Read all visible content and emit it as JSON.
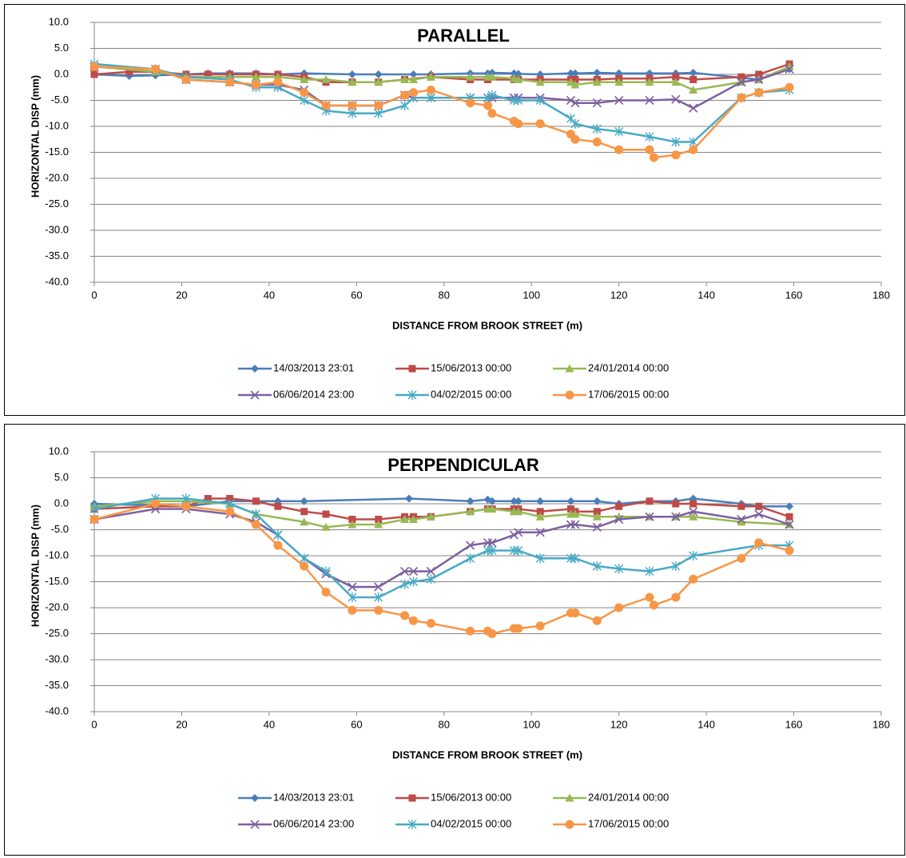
{
  "chart_data": [
    {
      "type": "line",
      "title": "PARALLEL",
      "x_label": "DISTANCE FROM BROOK STREET (m)",
      "y_label": "HORIZONTAL DISP (mm)",
      "xlim": [
        0,
        180
      ],
      "xticks": [
        0,
        20,
        40,
        60,
        80,
        100,
        120,
        140,
        160,
        180
      ],
      "ylim": [
        -40,
        10
      ],
      "yticks": [
        {
          "value": 10,
          "label": "10.0"
        },
        {
          "value": 5,
          "label": "5.0"
        },
        {
          "value": 0,
          "label": "0.0"
        },
        {
          "value": -5,
          "label": "-5.0"
        },
        {
          "value": -10,
          "label": "-10.0"
        },
        {
          "value": -15,
          "label": "-15.0"
        },
        {
          "value": -20,
          "label": "-20.0"
        },
        {
          "value": -25,
          "label": "-25.0"
        },
        {
          "value": -30,
          "label": "-30.0"
        },
        {
          "value": -35,
          "label": "-35.0"
        },
        {
          "value": -40,
          "label": "-40.0"
        }
      ],
      "grid": true,
      "legend": "bottom",
      "series": [
        {
          "name": "14/03/2013 23:01",
          "color": "#4a7ebb",
          "marker": "diamond",
          "x": [
            0,
            8,
            14,
            21,
            26,
            31,
            37,
            42,
            48,
            59,
            65,
            73,
            77,
            86,
            90,
            91,
            96,
            97,
            102,
            109,
            110,
            115,
            120,
            127,
            133,
            137,
            152,
            159
          ],
          "values": [
            0,
            -0.3,
            -0.2,
            0,
            0.2,
            0.2,
            0.2,
            0,
            0.2,
            0,
            0,
            0,
            0,
            0.2,
            0.2,
            0.3,
            0.2,
            0.1,
            0,
            0.2,
            0.2,
            0.3,
            0.2,
            0.2,
            0.2,
            0.3,
            -1,
            1
          ]
        },
        {
          "name": "15/06/2013 00:00",
          "color": "#be4b48",
          "marker": "square",
          "x": [
            0,
            8,
            14,
            21,
            26,
            31,
            37,
            42,
            48,
            53,
            59,
            65,
            71,
            77,
            86,
            90,
            96,
            97,
            102,
            109,
            110,
            115,
            120,
            127,
            133,
            137,
            148,
            152,
            159
          ],
          "values": [
            0,
            0.5,
            0.5,
            0,
            0,
            0,
            0,
            0,
            -0.5,
            -1.5,
            -1.5,
            -1.5,
            -1,
            -0.5,
            -1,
            -1,
            -1,
            -1,
            -1,
            -1,
            -1,
            -1,
            -0.8,
            -0.8,
            -0.5,
            -1,
            -0.5,
            0,
            2
          ]
        },
        {
          "name": "24/01/2014 00:00",
          "color": "#98b954",
          "marker": "triangle",
          "x": [
            0,
            14,
            21,
            31,
            37,
            42,
            48,
            53,
            59,
            65,
            71,
            73,
            77,
            86,
            90,
            91,
            96,
            97,
            102,
            109,
            110,
            115,
            120,
            127,
            133,
            137,
            148,
            152,
            159
          ],
          "values": [
            1.5,
            0.5,
            -0.5,
            -0.5,
            -0.5,
            -0.5,
            -1,
            -1,
            -1.5,
            -1.5,
            -1,
            -1,
            -0.5,
            -0.5,
            -0.5,
            -0.5,
            -0.8,
            -1,
            -1.5,
            -1.5,
            -2,
            -1.5,
            -1.5,
            -1.5,
            -1.5,
            -3,
            -1.5,
            -1,
            1.5
          ]
        },
        {
          "name": "06/06/2014 23:00",
          "color": "#7d60a0",
          "marker": "x",
          "x": [
            0,
            14,
            21,
            31,
            37,
            42,
            48,
            53,
            59,
            65,
            71,
            73,
            77,
            86,
            90,
            91,
            96,
            97,
            102,
            109,
            110,
            115,
            120,
            127,
            133,
            137,
            148,
            152,
            159
          ],
          "values": [
            1.5,
            1,
            -1,
            -1.5,
            -2,
            -2,
            -3,
            -6,
            -6,
            -6,
            -4,
            -4.5,
            -4.5,
            -4.5,
            -4.5,
            -4.5,
            -4.5,
            -4.5,
            -4.5,
            -5,
            -5.5,
            -5.5,
            -5,
            -5,
            -4.8,
            -6.5,
            -1.5,
            -1,
            1
          ]
        },
        {
          "name": "04/02/2015 00:00",
          "color": "#46aac5",
          "marker": "star",
          "x": [
            0,
            14,
            21,
            31,
            37,
            42,
            48,
            53,
            59,
            65,
            71,
            73,
            77,
            86,
            90,
            91,
            96,
            97,
            102,
            109,
            110,
            115,
            120,
            127,
            133,
            137,
            148,
            152,
            159
          ],
          "values": [
            2,
            1,
            -0.5,
            -1,
            -2.5,
            -2.5,
            -5,
            -7,
            -7.5,
            -7.5,
            -6,
            -4.5,
            -4.5,
            -4.5,
            -4.5,
            -4,
            -5,
            -5,
            -5,
            -8.5,
            -9.5,
            -10.5,
            -11,
            -12,
            -13,
            -13,
            -4.5,
            -3.5,
            -3
          ]
        },
        {
          "name": "17/06/2015 00:00",
          "color": "#f79646",
          "marker": "circle",
          "x": [
            0,
            14,
            21,
            31,
            37,
            42,
            48,
            53,
            59,
            65,
            71,
            73,
            77,
            86,
            90,
            91,
            96,
            97,
            102,
            109,
            110,
            115,
            120,
            127,
            128,
            133,
            137,
            148,
            152,
            159
          ],
          "values": [
            1.5,
            1,
            -1,
            -1.5,
            -2,
            -1.5,
            -3.5,
            -6,
            -6,
            -6,
            -4,
            -3.5,
            -3,
            -5.5,
            -6,
            -7.5,
            -9,
            -9.5,
            -9.5,
            -11.5,
            -12.5,
            -13,
            -14.5,
            -14.5,
            -16,
            -15.5,
            -14.5,
            -4.5,
            -3.5,
            -2.5
          ]
        }
      ]
    },
    {
      "type": "line",
      "title": "PERPENDICULAR",
      "x_label": "DISTANCE FROM BROOK STREET (m)",
      "y_label": "HORIZONTAL DISP (mm)",
      "xlim": [
        0,
        180
      ],
      "xticks": [
        0,
        20,
        40,
        60,
        80,
        100,
        120,
        140,
        160,
        180
      ],
      "ylim": [
        -40,
        10
      ],
      "yticks": [
        {
          "value": 10,
          "label": "10.0"
        },
        {
          "value": 5,
          "label": "5.0"
        },
        {
          "value": 0,
          "label": "0.0"
        },
        {
          "value": -5,
          "label": "-5.0"
        },
        {
          "value": -10,
          "label": "-10.0"
        },
        {
          "value": -15,
          "label": "-15.0"
        },
        {
          "value": -20,
          "label": "-20.0"
        },
        {
          "value": -25,
          "label": "-25.0"
        },
        {
          "value": -30,
          "label": "-30.0"
        },
        {
          "value": -35,
          "label": "-35.0"
        },
        {
          "value": -40,
          "label": "-40.0"
        }
      ],
      "grid": true,
      "legend": "bottom",
      "series": [
        {
          "name": "14/03/2013 23:01",
          "color": "#4a7ebb",
          "marker": "diamond",
          "x": [
            0,
            21,
            31,
            42,
            48,
            72,
            86,
            90,
            91,
            96,
            97,
            102,
            109,
            115,
            120,
            127,
            133,
            137,
            148,
            152,
            159
          ],
          "values": [
            0,
            -0.5,
            0.5,
            0.5,
            0.5,
            1,
            0.5,
            0.8,
            0.5,
            0.5,
            0.5,
            0.5,
            0.5,
            0.5,
            0,
            0.5,
            0.5,
            1,
            0,
            -0.5,
            -0.5
          ]
        },
        {
          "name": "15/06/2013 00:00",
          "color": "#be4b48",
          "marker": "square",
          "x": [
            0,
            14,
            21,
            26,
            31,
            37,
            42,
            48,
            53,
            59,
            65,
            71,
            73,
            77,
            86,
            90,
            91,
            96,
            97,
            102,
            109,
            110,
            115,
            120,
            127,
            133,
            137,
            148,
            152,
            159
          ],
          "values": [
            -1,
            -0.5,
            -0.5,
            1,
            1,
            0.5,
            -0.5,
            -1.5,
            -2,
            -3,
            -3,
            -2.5,
            -2.5,
            -2.5,
            -1.5,
            -1,
            -1,
            -1,
            -1,
            -1.5,
            -1,
            -1.5,
            -1.5,
            -0.5,
            0.5,
            0,
            0,
            -0.5,
            -0.5,
            -2.5
          ]
        },
        {
          "name": "24/01/2014 00:00",
          "color": "#98b954",
          "marker": "triangle",
          "x": [
            0,
            14,
            21,
            31,
            37,
            48,
            53,
            59,
            65,
            71,
            73,
            77,
            86,
            90,
            91,
            96,
            97,
            102,
            109,
            110,
            115,
            120,
            127,
            133,
            137,
            148,
            159
          ],
          "values": [
            -0.5,
            0.5,
            0.5,
            0,
            -2,
            -3.5,
            -4.5,
            -4,
            -4,
            -3,
            -3,
            -2.5,
            -1.5,
            -1,
            -1,
            -1.5,
            -1.5,
            -2.5,
            -2,
            -2,
            -2.5,
            -2.5,
            -2.5,
            -2.5,
            -2.5,
            -3.5,
            -4
          ]
        },
        {
          "name": "06/06/2014 23:00",
          "color": "#7d60a0",
          "marker": "x",
          "x": [
            0,
            14,
            21,
            31,
            37,
            42,
            48,
            53,
            59,
            65,
            71,
            73,
            77,
            86,
            90,
            91,
            96,
            97,
            102,
            109,
            110,
            115,
            120,
            127,
            133,
            137,
            148,
            152,
            159
          ],
          "values": [
            -3,
            -1,
            -1,
            -2,
            -3.5,
            -6,
            -10.5,
            -13.5,
            -16,
            -16,
            -13,
            -13,
            -13,
            -8,
            -7.5,
            -7.5,
            -6,
            -5.5,
            -5.5,
            -4,
            -4,
            -4.5,
            -3,
            -2.5,
            -2.5,
            -1.5,
            -3,
            -2,
            -4
          ]
        },
        {
          "name": "04/02/2015 00:00",
          "color": "#46aac5",
          "marker": "star",
          "x": [
            0,
            14,
            21,
            31,
            37,
            42,
            48,
            53,
            59,
            65,
            71,
            73,
            77,
            86,
            90,
            91,
            96,
            97,
            102,
            109,
            110,
            115,
            120,
            127,
            133,
            137,
            152,
            159
          ],
          "values": [
            -1,
            1,
            1,
            0,
            -2,
            -6,
            -10.5,
            -13,
            -18,
            -18,
            -15.5,
            -15,
            -14.5,
            -10.5,
            -9,
            -9,
            -9,
            -9,
            -10.5,
            -10.5,
            -10.5,
            -12,
            -12.5,
            -13,
            -12,
            -10,
            -8,
            -8
          ]
        },
        {
          "name": "17/06/2015 00:00",
          "color": "#f79646",
          "marker": "circle",
          "x": [
            0,
            14,
            21,
            31,
            37,
            42,
            48,
            53,
            59,
            65,
            71,
            73,
            77,
            86,
            90,
            91,
            96,
            97,
            102,
            109,
            110,
            115,
            120,
            127,
            128,
            133,
            137,
            148,
            152,
            159
          ],
          "values": [
            -3,
            0,
            -0.5,
            -1.5,
            -4,
            -8,
            -12,
            -17,
            -20.5,
            -20.5,
            -21.5,
            -22.5,
            -23,
            -24.5,
            -24.5,
            -25,
            -24,
            -24,
            -23.5,
            -21,
            -21,
            -22.5,
            -20,
            -18,
            -19.5,
            -18,
            -14.5,
            -10.5,
            -7.5,
            -9
          ]
        }
      ]
    }
  ]
}
